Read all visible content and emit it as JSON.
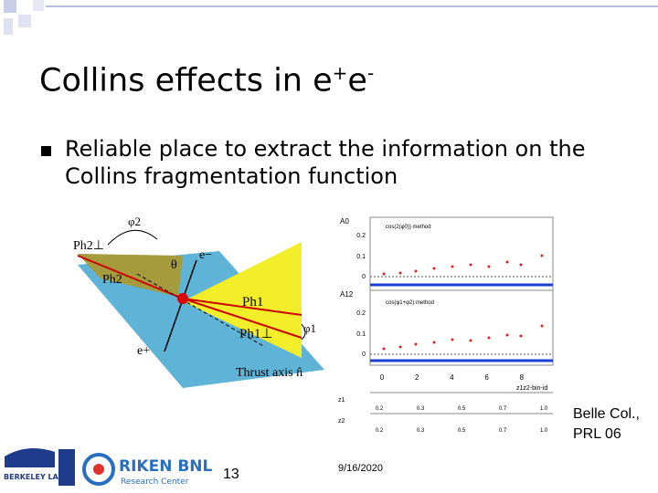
{
  "header": {
    "title": "Collins effects in e",
    "title_sup_1": "+",
    "title_2": "e",
    "title_sup_2": "-"
  },
  "bullets": [
    "Reliable place to extract the information on the Collins fragmentation function"
  ],
  "diagram": {
    "phi2": "φ2",
    "ph2perp": "Ph2⊥",
    "ph2": "Ph2",
    "theta": "θ",
    "eminus": "e−",
    "ph1": "Ph1",
    "ph1perp": "Ph1⊥",
    "phi1": "φ1",
    "eplus": "e+",
    "thrust": "Thrust axis n̂"
  },
  "plot": {
    "panel_top": "A0",
    "panel_bottom": "A12",
    "method_top": "cos(2(φ0)) method",
    "method_bottom": "cos(φ1+φ2) method",
    "yticks": [
      "0.2",
      "0.1",
      "0"
    ],
    "xticks": [
      "0",
      "2",
      "4",
      "6",
      "8"
    ],
    "xlabel": "z1z2-bin-id",
    "z1_label": "z1",
    "z2_label": "z2",
    "z_values": [
      "0.2",
      "0.3",
      "0.5",
      "0.7",
      "1.0"
    ]
  },
  "caption": [
    "Belle Col.,",
    "PRL 06"
  ],
  "footer": {
    "page": "13",
    "date": "9/16/2020"
  },
  "logos": {
    "berkeley": "BERKELEY LAB",
    "riken": "RIKEN BNL",
    "riken_sub": "Research Center"
  }
}
